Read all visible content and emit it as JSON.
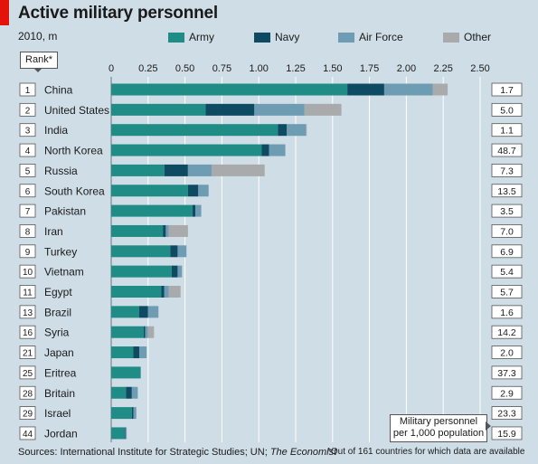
{
  "title": "Active military personnel",
  "subtitle": "2010, m",
  "rank_label": "Rank*",
  "pop_label_line1": "Military personnel",
  "pop_label_line2": "per 1,000 population",
  "footer_source_prefix": "Sources: International Institute for Strategic Studies; UN; ",
  "footer_source_italic": "The Economist",
  "footer_note": "*Out of 161 countries for which data are available",
  "colors": {
    "army": "#1f8c86",
    "navy": "#0f4a63",
    "air_force": "#6d9cb3",
    "other": "#a9aaab",
    "background": "#cfdde6",
    "title_accent": "#e3120b"
  },
  "chart_data": {
    "type": "bar",
    "orientation": "horizontal",
    "stacked": true,
    "title": "Active military personnel",
    "subtitle": "2010, m",
    "xlim": [
      0,
      2.5
    ],
    "x_ticks": [
      "0",
      "0.25",
      "0.50",
      "0.75",
      "1.00",
      "1.25",
      "1.50",
      "1.75",
      "2.00",
      "2.25",
      "2.50"
    ],
    "grid": true,
    "legend_position": "top",
    "categories": [
      "China",
      "United States",
      "India",
      "North Korea",
      "Russia",
      "South Korea",
      "Pakistan",
      "Iran",
      "Turkey",
      "Vietnam",
      "Egypt",
      "Brazil",
      "Syria",
      "Japan",
      "Eritrea",
      "Britain",
      "Israel",
      "Jordan"
    ],
    "ranks": [
      "1",
      "2",
      "3",
      "4",
      "5",
      "6",
      "7",
      "8",
      "9",
      "10",
      "11",
      "13",
      "16",
      "21",
      "25",
      "28",
      "29",
      "44"
    ],
    "series": [
      {
        "name": "Army",
        "values": [
          1.6,
          0.64,
          1.13,
          1.02,
          0.36,
          0.52,
          0.55,
          0.35,
          0.4,
          0.41,
          0.34,
          0.19,
          0.22,
          0.15,
          0.2,
          0.1,
          0.14,
          0.09
        ]
      },
      {
        "name": "Navy",
        "values": [
          0.25,
          0.33,
          0.06,
          0.05,
          0.16,
          0.07,
          0.02,
          0.02,
          0.05,
          0.04,
          0.02,
          0.06,
          0.01,
          0.04,
          0.0,
          0.04,
          0.01,
          0.005
        ]
      },
      {
        "name": "Air Force",
        "values": [
          0.33,
          0.34,
          0.13,
          0.11,
          0.16,
          0.07,
          0.04,
          0.02,
          0.06,
          0.03,
          0.03,
          0.07,
          0.02,
          0.05,
          0.0,
          0.04,
          0.02,
          0.01
        ]
      },
      {
        "name": "Other",
        "values": [
          0.1,
          0.25,
          0.005,
          0.0,
          0.36,
          0.0,
          0.0,
          0.13,
          0.0,
          0.0,
          0.08,
          0.0,
          0.04,
          0.0,
          0.0,
          0.0,
          0.0,
          0.0
        ]
      }
    ],
    "per_1000_population": [
      "1.7",
      "5.0",
      "1.1",
      "48.7",
      "7.3",
      "13.5",
      "3.5",
      "7.0",
      "6.9",
      "5.4",
      "5.7",
      "1.6",
      "14.2",
      "2.0",
      "37.3",
      "2.9",
      "23.3",
      "15.9"
    ]
  }
}
